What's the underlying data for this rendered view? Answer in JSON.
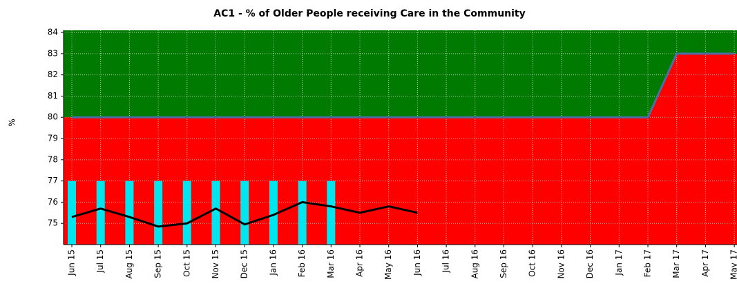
{
  "chart_data": {
    "type": "line",
    "title": "AC1 - % of Older People receiving Care in the Community",
    "y_label": "%",
    "categories": [
      "Jun 15",
      "Jul 15",
      "Aug 15",
      "Sep 15",
      "Oct 15",
      "Nov 15",
      "Dec 15",
      "Jan 16",
      "Feb 16",
      "Mar 16",
      "Apr 16",
      "May 16",
      "Jun 16",
      "Jul 16",
      "Aug 16",
      "Sep 16",
      "Oct 16",
      "Nov 16",
      "Dec 16",
      "Jan 17",
      "Feb 17",
      "Mar 17",
      "Apr 17",
      "May 17"
    ],
    "ylim": [
      74,
      84.1
    ],
    "yticks": [
      75,
      76,
      77,
      78,
      79,
      80,
      81,
      82,
      83,
      84
    ],
    "grid": true,
    "series": [
      {
        "kind": "threshold",
        "color": "#4a6fa5",
        "below_color": "#ff0000",
        "above_color": "#007a00",
        "values": [
          80,
          80,
          80,
          80,
          80,
          80,
          80,
          80,
          80,
          80,
          80,
          80,
          80,
          80,
          80,
          80,
          80,
          80,
          80,
          80,
          80,
          83,
          83,
          83
        ]
      },
      {
        "kind": "bar",
        "color": "#00e5ee",
        "values": [
          77,
          77,
          77,
          77,
          77,
          77,
          77,
          77,
          77,
          77,
          null,
          null,
          null,
          null,
          null,
          null,
          null,
          null,
          null,
          null,
          null,
          null,
          null,
          null
        ]
      },
      {
        "kind": "line",
        "color": "#000000",
        "values": [
          75.3,
          75.7,
          75.3,
          74.85,
          75.0,
          75.7,
          74.95,
          75.4,
          76.0,
          75.8,
          75.5,
          75.8,
          75.5,
          null,
          null,
          null,
          null,
          null,
          null,
          null,
          null,
          null,
          null,
          null
        ]
      }
    ]
  }
}
